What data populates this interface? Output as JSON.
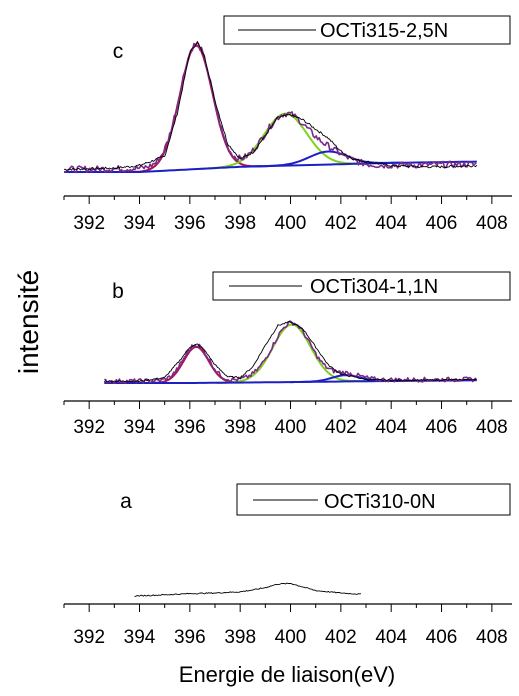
{
  "chart_data": {
    "type": "line",
    "shared_ylabel": "intensité",
    "shared_xlabel": "Energie de liaison(eV)",
    "panels": [
      {
        "letter": "c",
        "legend": "OCTi315-2,5N",
        "xlim": [
          391,
          408.8
        ],
        "xticks": [
          392,
          394,
          396,
          398,
          400,
          402,
          404,
          406,
          408
        ],
        "ylim": [
          0,
          1
        ],
        "data_range": [
          391,
          407.4
        ],
        "series": [
          {
            "kind": "measured",
            "color": "#000000",
            "x": [
              391,
              393,
              394,
              395,
              395.5,
              396.0,
              396.3,
              396.6,
              397.0,
              397.5,
              398.0,
              398.5,
              399.0,
              399.5,
              400.0,
              400.5,
              401.0,
              401.5,
              402.0,
              402.5,
              403.0,
              404.0,
              405.0,
              406.0,
              407.4
            ],
            "y": [
              0.02,
              0.03,
              0.05,
              0.12,
              0.45,
              0.92,
              1.0,
              0.88,
              0.55,
              0.22,
              0.1,
              0.15,
              0.28,
              0.42,
              0.44,
              0.4,
              0.33,
              0.26,
              0.16,
              0.1,
              0.08,
              0.05,
              0.04,
              0.04,
              0.05
            ]
          },
          {
            "kind": "peak",
            "color": "#b0124f",
            "center": 396.25,
            "sigma": 0.65,
            "height": 0.95
          },
          {
            "kind": "peak",
            "color": "#7bd31a",
            "center": 399.8,
            "sigma": 0.85,
            "height": 0.4
          },
          {
            "kind": "peak",
            "color": "#1b1fc4",
            "center": 401.5,
            "sigma": 0.75,
            "height": 0.1
          },
          {
            "kind": "background",
            "color": "#1b1fc4",
            "x": [
              391,
              394,
              396,
              398,
              400,
              402,
              404,
              407.4
            ],
            "y": [
              0.0,
              0.0,
              0.02,
              0.04,
              0.05,
              0.06,
              0.07,
              0.08
            ]
          },
          {
            "kind": "noise_base",
            "color": "#7a2a8a",
            "x": [
              391,
              407.4
            ],
            "y": [
              0.02,
              0.06
            ]
          }
        ]
      },
      {
        "letter": "b",
        "legend": "OCTi304-1,1N",
        "xlim": [
          391,
          408.8
        ],
        "xticks": [
          392,
          394,
          396,
          398,
          400,
          402,
          404,
          406,
          408
        ],
        "ylim": [
          0,
          1
        ],
        "data_range": [
          392.6,
          407.4
        ],
        "series": [
          {
            "kind": "measured",
            "color": "#000000",
            "x": [
              392.6,
              394,
              395,
              395.6,
              396.0,
              396.3,
              396.6,
              397.0,
              397.5,
              398.0,
              398.5,
              399.0,
              399.5,
              400.0,
              400.5,
              401.0,
              401.5,
              402.0,
              402.5,
              403.0,
              404.0,
              405.0,
              407.4
            ],
            "y": [
              0.02,
              0.02,
              0.06,
              0.25,
              0.4,
              0.43,
              0.36,
              0.2,
              0.07,
              0.06,
              0.18,
              0.42,
              0.64,
              0.68,
              0.6,
              0.4,
              0.2,
              0.1,
              0.07,
              0.04,
              0.03,
              0.03,
              0.04
            ]
          },
          {
            "kind": "peak",
            "color": "#b0124f",
            "center": 396.25,
            "sigma": 0.5,
            "height": 0.4
          },
          {
            "kind": "peak",
            "color": "#7bd31a",
            "center": 400.05,
            "sigma": 0.75,
            "height": 0.64
          },
          {
            "kind": "peak",
            "color": "#1b1fc4",
            "center": 402.2,
            "sigma": 0.55,
            "height": 0.07
          },
          {
            "kind": "background",
            "color": "#1b1fc4",
            "x": [
              392.6,
              396,
              400,
              403,
              407.4
            ],
            "y": [
              0.0,
              0.0,
              0.01,
              0.02,
              0.03
            ]
          },
          {
            "kind": "noise_base",
            "color": "#7a2a8a",
            "x": [
              392.6,
              407.4
            ],
            "y": [
              0.02,
              0.04
            ]
          }
        ]
      },
      {
        "letter": "a",
        "legend": "OCTi310-0N",
        "xlim": [
          391,
          408.8
        ],
        "xticks": [
          392,
          394,
          396,
          398,
          400,
          402,
          404,
          406,
          408
        ],
        "ylim": [
          0,
          1
        ],
        "data_range": [
          393.8,
          402.8
        ],
        "series": [
          {
            "kind": "measured",
            "color": "#000000",
            "x": [
              393.8,
              395,
              396,
              397,
              398,
              398.5,
              399,
              399.5,
              400,
              400.5,
              401,
              402,
              402.8
            ],
            "y": [
              0.0,
              0.02,
              0.04,
              0.05,
              0.07,
              0.1,
              0.14,
              0.2,
              0.21,
              0.15,
              0.09,
              0.05,
              0.03
            ]
          }
        ]
      }
    ]
  }
}
